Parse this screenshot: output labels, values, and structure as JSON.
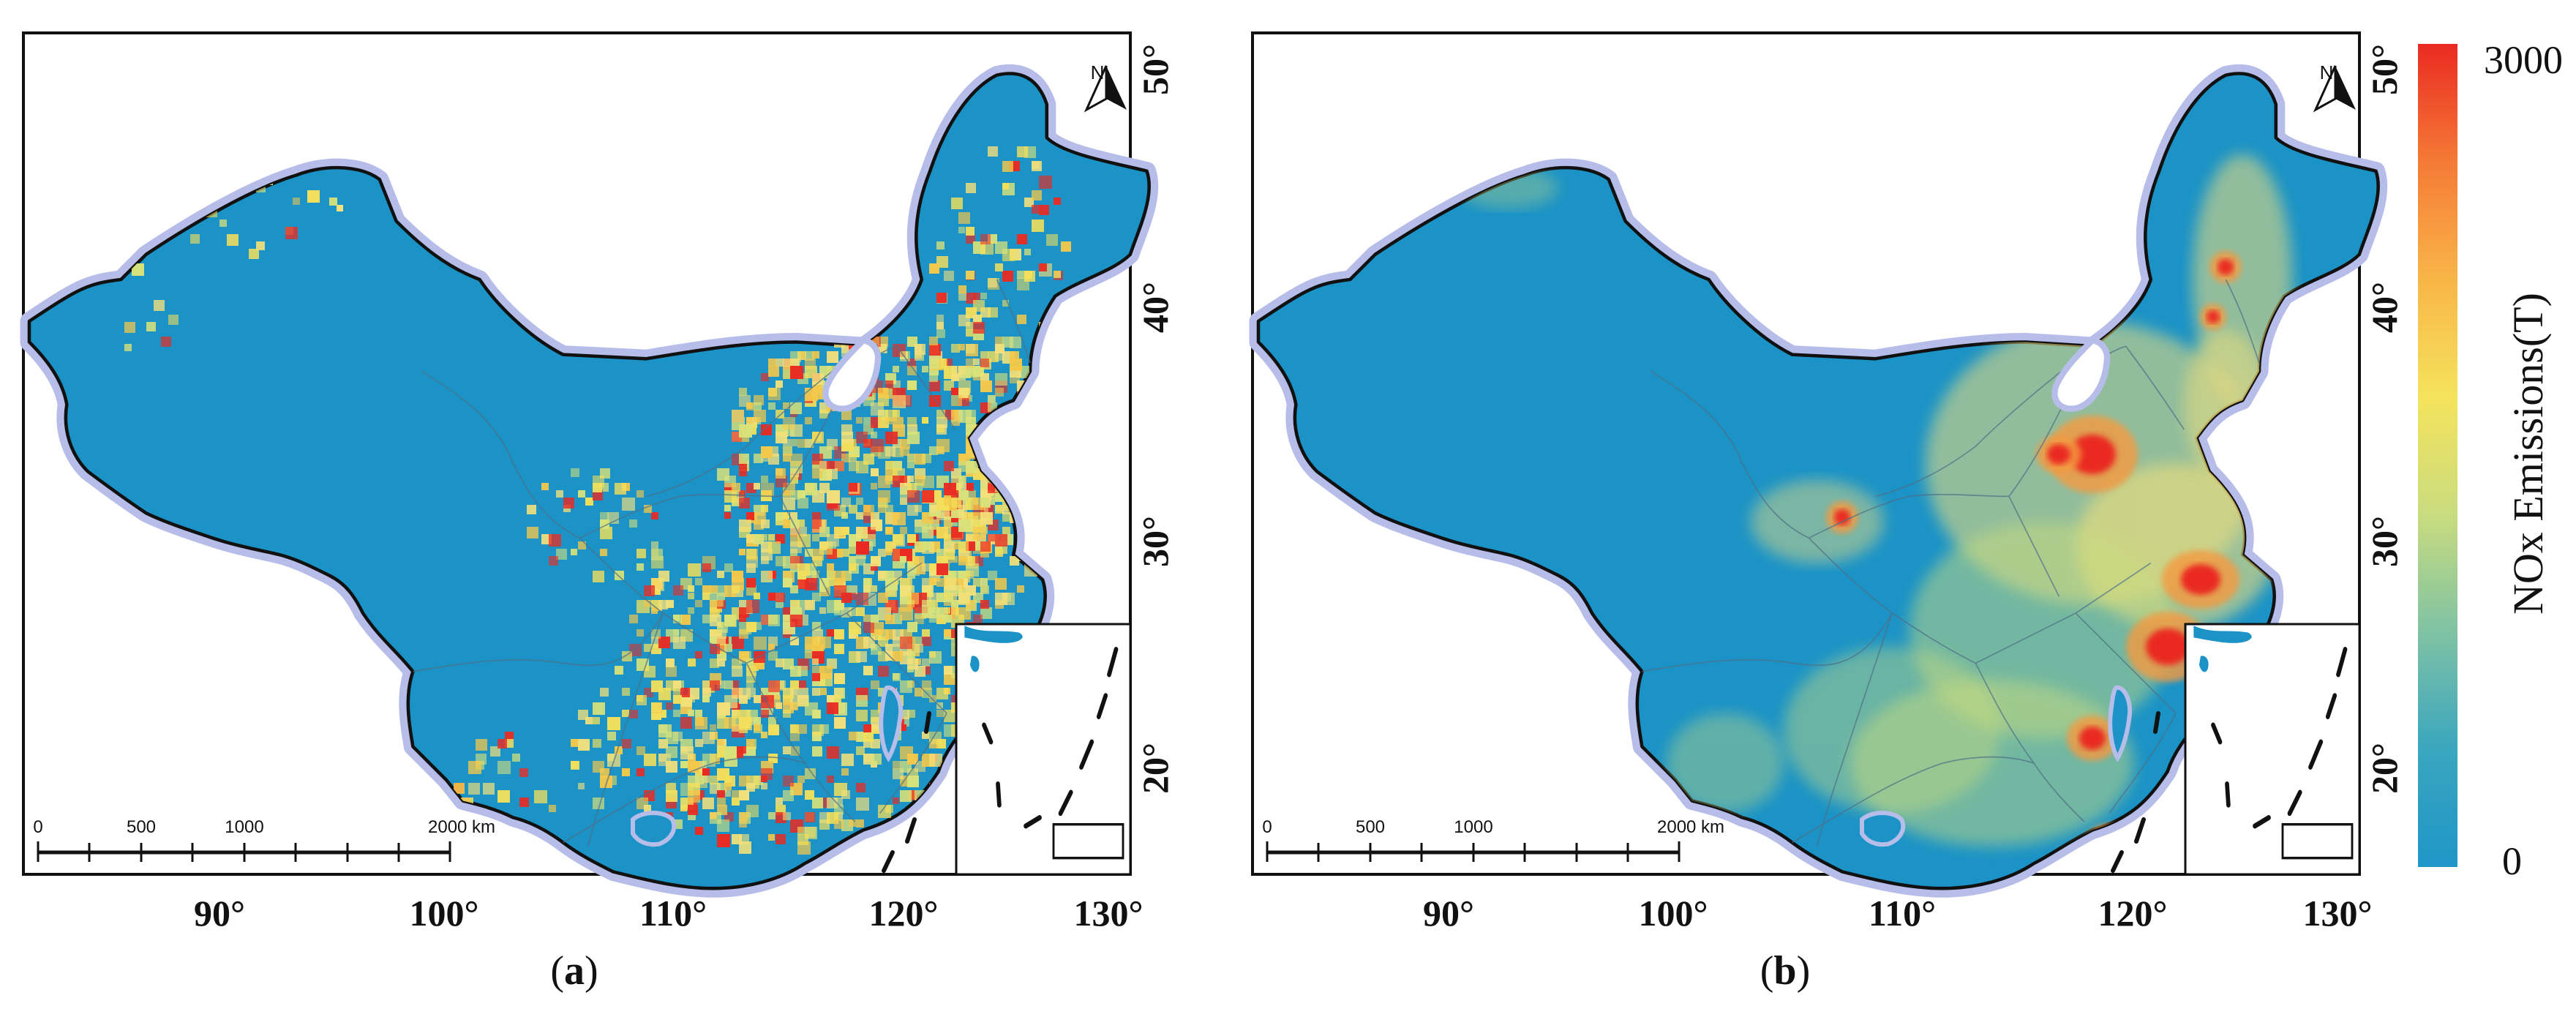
{
  "panels": [
    {
      "id": "a",
      "caption_open": "(",
      "caption_letter": "a",
      "caption_close": ")",
      "style": "gridded",
      "lon_ticks": [
        "90°",
        "100°",
        "110°",
        "120°",
        "130°"
      ],
      "lat_ticks": [
        "20°",
        "30°",
        "40°",
        "50°"
      ],
      "north_label": "N",
      "scale_labels": [
        "0",
        "500",
        "1000",
        "2000 km"
      ]
    },
    {
      "id": "b",
      "caption_open": "(",
      "caption_letter": "b",
      "caption_close": ")",
      "style": "smooth",
      "lon_ticks": [
        "90°",
        "100°",
        "110°",
        "120°",
        "130°"
      ],
      "lat_ticks": [
        "20°",
        "30°",
        "40°",
        "50°"
      ],
      "north_label": "N",
      "scale_labels": [
        "0",
        "500",
        "1000",
        "2000 km"
      ]
    }
  ],
  "colorbar": {
    "title": "NOx Emissions(T)",
    "max_label": "3000",
    "min_label": "0",
    "max_value": 3000,
    "min_value": 0,
    "colors": [
      "#1f96c8",
      "#3aa6bf",
      "#7fc2a4",
      "#c9dc7e",
      "#f5e35c",
      "#f9b548",
      "#f57a36",
      "#ea2a22"
    ]
  },
  "colors": {
    "land": "#1b93c6",
    "sea": "#ffffff",
    "coast_halo": "#b6bde9",
    "border": "#111111",
    "province_line": "#4f6f86"
  }
}
